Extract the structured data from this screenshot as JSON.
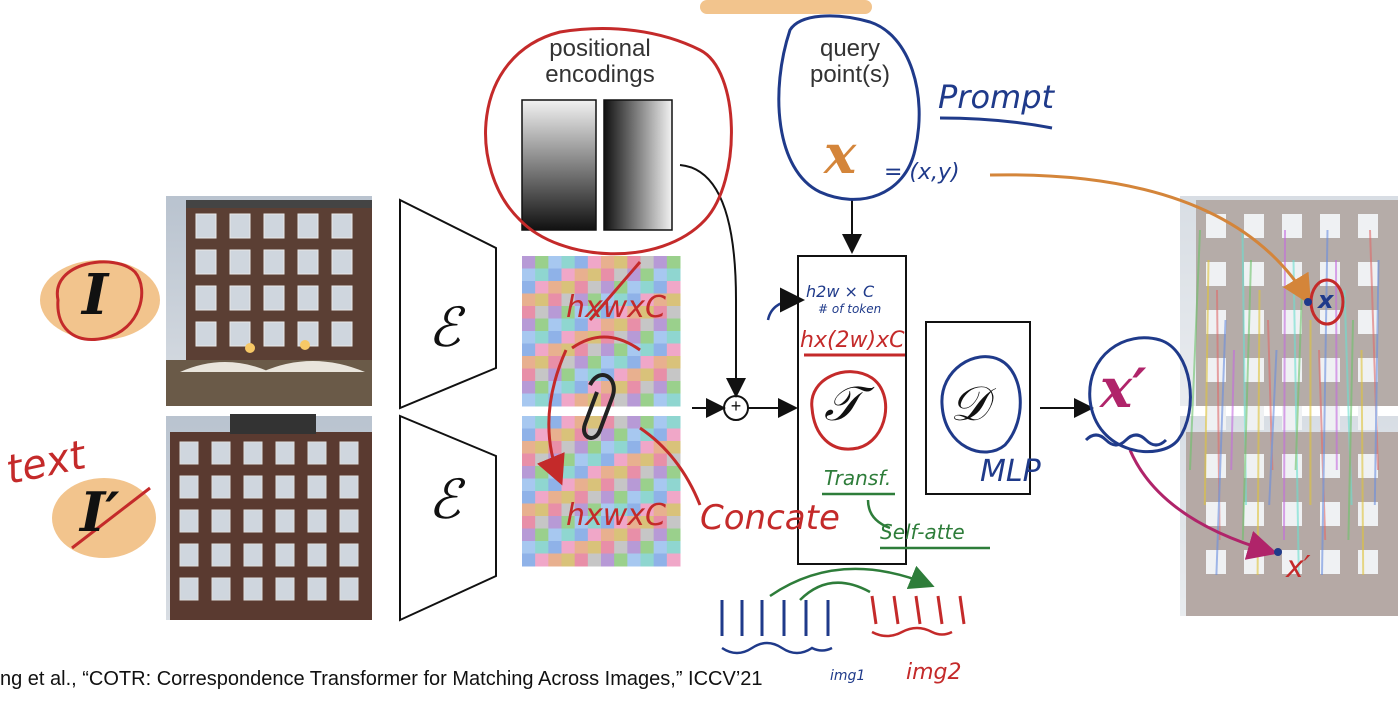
{
  "diagram": {
    "pe_title_line1": "positional",
    "pe_title_line2": "encodings",
    "query_line1": "query",
    "query_line2": "point(s)",
    "query_symbol": "x",
    "output_symbol": "x′",
    "input_image_symbol": "I",
    "input_image2_symbol": "I′",
    "encoder_symbol": "ℰ",
    "transformer_symbol": "𝒯",
    "decoder_symbol": "𝒟",
    "plus_symbol": "+",
    "citation": "ng et al., “COTR: Correspondence Transformer for Matching Across Images,” ICCV’21"
  },
  "annotations": {
    "prompt": "Prompt",
    "xy": "= (x,y)",
    "text": "text",
    "hwc_top": "hxwxC",
    "hwc_bottom": "hxwxC",
    "concate": "Concate",
    "tokens": "h2w × C",
    "tokens_note": "# of token",
    "h2wc": "hx(2w)xC",
    "transf": "Transf.",
    "self_attn": "Self-atte",
    "mlp": "MLP",
    "img1": "img1",
    "img2": "img2",
    "x_small": "x",
    "x_prime_small": "x′"
  },
  "colors": {
    "red": "#c42a2a",
    "blue": "#1f3a8a",
    "green": "#2e7d3a",
    "orange": "#d4853a",
    "magenta": "#b0246a",
    "highlight": "#f2c48d"
  }
}
